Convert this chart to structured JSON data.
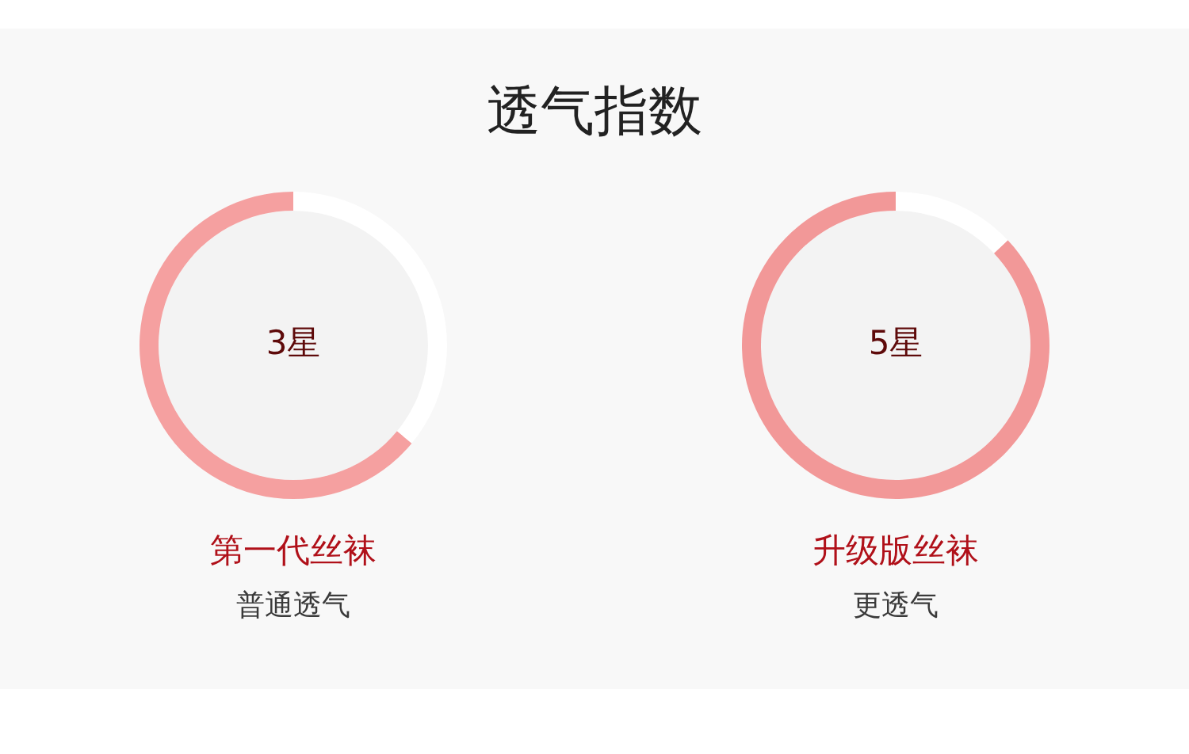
{
  "chart_data": [
    {
      "type": "other",
      "title": "透气指数"
    },
    {
      "type": "donut",
      "title": "第一代丝袜",
      "subtitle": "普通透气",
      "annotations": [
        "3星"
      ],
      "categories": [
        null,
        null
      ],
      "values": [
        64,
        36
      ],
      "colors": [
        "#f5a0a0",
        "#ffffff"
      ]
    },
    {
      "type": "donut",
      "title": "升级版丝袜",
      "subtitle": "更透气",
      "annotations": [
        "5星"
      ],
      "categories": [
        null,
        null
      ],
      "values": [
        87,
        13
      ],
      "colors": [
        "#f29898",
        "#ffffff"
      ]
    }
  ]
}
